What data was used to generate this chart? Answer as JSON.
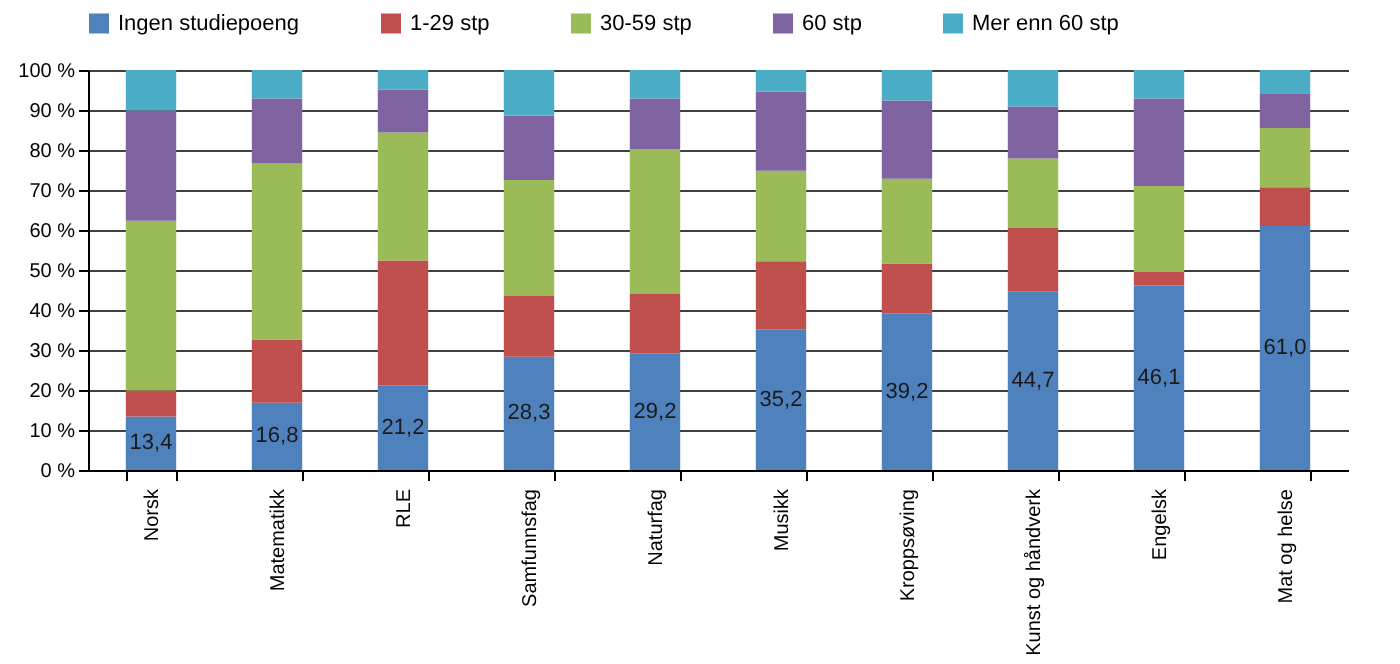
{
  "chart_data": {
    "type": "bar",
    "stacked": true,
    "categories": [
      "Norsk",
      "Matematikk",
      "RLE",
      "Samfunnsfag",
      "Naturfag",
      "Musikk",
      "Kroppsøving",
      "Kunst og håndverk",
      "Engelsk",
      "Mat og helse"
    ],
    "series": [
      {
        "name": "Ingen studiepoeng",
        "color": "#4f81bd",
        "values": [
          13.4,
          16.8,
          21.2,
          28.3,
          29.2,
          35.2,
          39.2,
          44.7,
          46.1,
          61.0
        ],
        "value_labels": [
          "13,4",
          "16,8",
          "21,2",
          "28,3",
          "29,2",
          "35,2",
          "39,2",
          "44,7",
          "46,1",
          "61,0"
        ]
      },
      {
        "name": "1-29 stp",
        "color": "#c0504d",
        "values": [
          6.5,
          15.8,
          31.2,
          15.2,
          14.8,
          17.0,
          12.4,
          15.8,
          3.4,
          9.7
        ]
      },
      {
        "name": "30-59 stp",
        "color": "#9bbb59",
        "values": [
          42.4,
          44.0,
          32.0,
          29.0,
          36.1,
          22.6,
          21.2,
          17.4,
          21.5,
          14.8
        ]
      },
      {
        "name": "60 stp",
        "color": "#8064a2",
        "values": [
          27.6,
          16.3,
          10.7,
          16.1,
          12.8,
          19.8,
          19.6,
          13.0,
          21.9,
          8.7
        ]
      },
      {
        "name": "Mer enn 60 stp",
        "color": "#4bacc6",
        "values": [
          10.1,
          7.1,
          4.9,
          11.4,
          7.1,
          5.4,
          7.6,
          9.1,
          7.1,
          5.8
        ]
      }
    ],
    "ylim": [
      0,
      100
    ],
    "yticks": [
      {
        "value": 0,
        "label": "0 %"
      },
      {
        "value": 10,
        "label": "10 %"
      },
      {
        "value": 20,
        "label": "20 %"
      },
      {
        "value": 30,
        "label": "30 %"
      },
      {
        "value": 40,
        "label": "40 %"
      },
      {
        "value": 50,
        "label": "50 %"
      },
      {
        "value": 60,
        "label": "60 %"
      },
      {
        "value": 70,
        "label": "70 %"
      },
      {
        "value": 80,
        "label": "80 %"
      },
      {
        "value": 90,
        "label": "90 %"
      },
      {
        "value": 100,
        "label": "100 %"
      }
    ],
    "grid": "y",
    "legend": "top"
  }
}
